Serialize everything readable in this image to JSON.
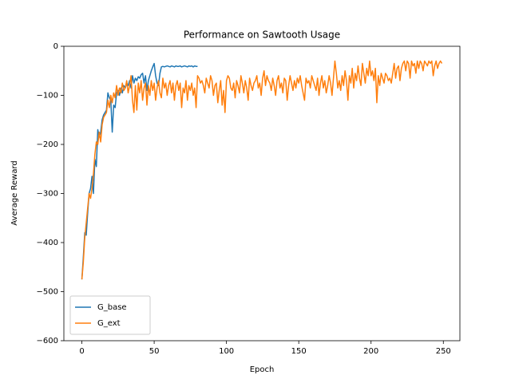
{
  "chart_data": {
    "type": "line",
    "title": "Performance on Sawtooth Usage",
    "x_label": "Epoch",
    "y_label": "Average Reward",
    "xlim": [
      -12.45,
      261.45
    ],
    "xticks": [
      0,
      50,
      100,
      150,
      200,
      250
    ],
    "ylim": [
      -600,
      0
    ],
    "yticks": [
      {
        "value": -600,
        "label": "−600"
      },
      {
        "value": -500,
        "label": "−500"
      },
      {
        "value": -400,
        "label": "−400"
      },
      {
        "value": -300,
        "label": "−300"
      },
      {
        "value": -200,
        "label": "−200"
      },
      {
        "value": -100,
        "label": "−100"
      },
      0
    ],
    "legend": "lower left",
    "grid": false,
    "series": [
      {
        "name": "G_base",
        "color": "#1f77b4",
        "x": [
          0,
          1,
          2,
          3,
          4,
          5,
          6,
          7,
          8,
          9,
          10,
          11,
          12,
          13,
          14,
          15,
          16,
          17,
          18,
          19,
          20,
          21,
          22,
          23,
          24,
          25,
          26,
          27,
          28,
          29,
          30,
          31,
          32,
          33,
          34,
          35,
          36,
          37,
          38,
          39,
          40,
          41,
          42,
          43,
          44,
          45,
          46,
          47,
          48,
          49,
          50,
          51,
          52,
          53,
          54,
          55,
          56,
          57,
          58,
          59,
          60,
          61,
          62,
          63,
          64,
          65,
          66,
          67,
          68,
          69,
          70,
          71,
          72,
          73,
          74,
          75,
          76,
          77,
          78,
          79,
          80
        ],
        "values": [
          -475,
          -430,
          -380,
          -385,
          -340,
          -300,
          -290,
          -265,
          -300,
          -230,
          -245,
          -170,
          -185,
          -175,
          -150,
          -140,
          -135,
          -130,
          -95,
          -105,
          -110,
          -175,
          -120,
          -125,
          -95,
          -90,
          -100,
          -85,
          -95,
          -80,
          -85,
          -75,
          -80,
          -70,
          -85,
          -60,
          -75,
          -65,
          -70,
          -62,
          -65,
          -58,
          -55,
          -75,
          -60,
          -90,
          -70,
          -60,
          -50,
          -42,
          -35,
          -60,
          -75,
          -80,
          -55,
          -42,
          -41,
          -42,
          -41,
          -40,
          -41,
          -42,
          -40,
          -41,
          -42,
          -40,
          -41,
          -41,
          -40,
          -42,
          -41,
          -40,
          -41,
          -42,
          -40,
          -41,
          -40,
          -42,
          -40,
          -41,
          -41
        ]
      },
      {
        "name": "G_ext",
        "color": "#ff7f0e",
        "x": [
          0,
          1,
          2,
          3,
          4,
          5,
          6,
          7,
          8,
          9,
          10,
          11,
          12,
          13,
          14,
          15,
          16,
          17,
          18,
          19,
          20,
          21,
          22,
          23,
          24,
          25,
          26,
          27,
          28,
          29,
          30,
          31,
          32,
          33,
          34,
          35,
          36,
          37,
          38,
          39,
          40,
          41,
          42,
          43,
          44,
          45,
          46,
          47,
          48,
          49,
          50,
          51,
          52,
          53,
          54,
          55,
          56,
          57,
          58,
          59,
          60,
          61,
          62,
          63,
          64,
          65,
          66,
          67,
          68,
          69,
          70,
          71,
          72,
          73,
          74,
          75,
          76,
          77,
          78,
          79,
          80,
          81,
          82,
          83,
          84,
          85,
          86,
          87,
          88,
          89,
          90,
          91,
          92,
          93,
          94,
          95,
          96,
          97,
          98,
          99,
          100,
          101,
          102,
          103,
          104,
          105,
          106,
          107,
          108,
          109,
          110,
          111,
          112,
          113,
          114,
          115,
          116,
          117,
          118,
          119,
          120,
          121,
          122,
          123,
          124,
          125,
          126,
          127,
          128,
          129,
          130,
          131,
          132,
          133,
          134,
          135,
          136,
          137,
          138,
          139,
          140,
          141,
          142,
          143,
          144,
          145,
          146,
          147,
          148,
          149,
          150,
          151,
          152,
          153,
          154,
          155,
          156,
          157,
          158,
          159,
          160,
          161,
          162,
          163,
          164,
          165,
          166,
          167,
          168,
          169,
          170,
          171,
          172,
          173,
          174,
          175,
          176,
          177,
          178,
          179,
          180,
          181,
          182,
          183,
          184,
          185,
          186,
          187,
          188,
          189,
          190,
          191,
          192,
          193,
          194,
          195,
          196,
          197,
          198,
          199,
          200,
          201,
          202,
          203,
          204,
          205,
          206,
          207,
          208,
          209,
          210,
          211,
          212,
          213,
          214,
          215,
          216,
          217,
          218,
          219,
          220,
          221,
          222,
          223,
          224,
          225,
          226,
          227,
          228,
          229,
          230,
          231,
          232,
          233,
          234,
          235,
          236,
          237,
          238,
          239,
          240,
          241,
          242,
          243,
          244,
          245,
          246,
          247,
          248,
          249
        ],
        "values": [
          -475,
          -440,
          -390,
          -360,
          -330,
          -300,
          -310,
          -290,
          -260,
          -220,
          -195,
          -200,
          -175,
          -195,
          -160,
          -145,
          -140,
          -135,
          -110,
          -125,
          -100,
          -115,
          -95,
          -105,
          -80,
          -100,
          -85,
          -95,
          -75,
          -90,
          -85,
          -70,
          -95,
          -80,
          -60,
          -110,
          -135,
          -80,
          -130,
          -75,
          -95,
          -70,
          -110,
          -85,
          -75,
          -120,
          -80,
          -100,
          -70,
          -90,
          -75,
          -110,
          -85,
          -70,
          -95,
          -105,
          -65,
          -85,
          -75,
          -100,
          -80,
          -70,
          -95,
          -75,
          -110,
          -80,
          -70,
          -90,
          -75,
          -125,
          -85,
          -95,
          -70,
          -110,
          -80,
          -90,
          -75,
          -100,
          -85,
          -125,
          -60,
          -65,
          -75,
          -70,
          -80,
          -95,
          -65,
          -75,
          -85,
          -60,
          -70,
          -100,
          -80,
          -75,
          -115,
          -90,
          -70,
          -120,
          -90,
          -135,
          -70,
          -60,
          -65,
          -85,
          -90,
          -75,
          -105,
          -70,
          -80,
          -95,
          -60,
          -75,
          -95,
          -70,
          -85,
          -110,
          -65,
          -80,
          -90,
          -75,
          -70,
          -60,
          -85,
          -75,
          -100,
          -65,
          -50,
          -80,
          -60,
          -70,
          -75,
          -90,
          -65,
          -80,
          -100,
          -70,
          -60,
          -85,
          -75,
          -95,
          -65,
          -70,
          -110,
          -80,
          -60,
          -75,
          -90,
          -70,
          -85,
          -65,
          -75,
          -60,
          -80,
          -95,
          -110,
          -65,
          -75,
          -70,
          -85,
          -60,
          -70,
          -80,
          -90,
          -65,
          -100,
          -75,
          -60,
          -85,
          -70,
          -95,
          -80,
          -60,
          -75,
          -100,
          -65,
          -30,
          -55,
          -85,
          -70,
          -90,
          -60,
          -80,
          -50,
          -70,
          -110,
          -60,
          -75,
          -45,
          -85,
          -55,
          -70,
          -40,
          -65,
          -80,
          -35,
          -55,
          -75,
          -45,
          -60,
          -30,
          -60,
          -50,
          -70,
          -45,
          -115,
          -60,
          -80,
          -55,
          -65,
          -75,
          -55,
          -60,
          -70,
          -65,
          -75,
          -55,
          -35,
          -65,
          -45,
          -40,
          -70,
          -45,
          -35,
          -30,
          -50,
          -30,
          -35,
          -65,
          -30,
          -40,
          -35,
          -55,
          -30,
          -45,
          -30,
          -35,
          -50,
          -30,
          -35,
          -40,
          -30,
          -35,
          -30,
          -60,
          -40,
          -30,
          -45,
          -35,
          -30,
          -35
        ]
      }
    ]
  }
}
